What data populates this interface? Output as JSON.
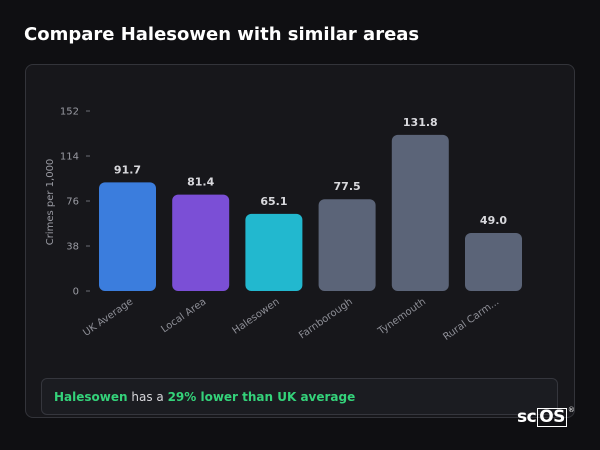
{
  "page": {
    "title": "Compare Halesowen with similar areas"
  },
  "summary": {
    "area": "Halesowen",
    "text_mid": " has a ",
    "comparison": "29% lower than UK average"
  },
  "brand": {
    "logo_left": "sc",
    "logo_boxed": "OS",
    "logo_mark": "®"
  },
  "chart_data": {
    "type": "bar",
    "title": "",
    "xlabel": "",
    "ylabel": "Crimes per 1,000",
    "ylim": [
      0,
      152
    ],
    "yticks": [
      0,
      38,
      76,
      114,
      152
    ],
    "grid": false,
    "categories": [
      "UK Average",
      "Local Area",
      "Halesowen",
      "Farnborough",
      "Tynemouth",
      "Rural Carm..."
    ],
    "values": [
      91.7,
      81.4,
      65.1,
      77.5,
      131.8,
      49.0
    ],
    "value_labels": [
      "91.7",
      "81.4",
      "65.1",
      "77.5",
      "131.8",
      "49.0"
    ],
    "colors": [
      "#3b7ddd",
      "#7b4fd6",
      "#22b8cf",
      "#5b6478",
      "#5b6478",
      "#5b6478"
    ]
  }
}
